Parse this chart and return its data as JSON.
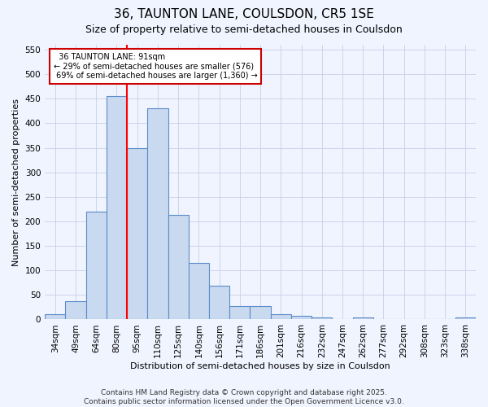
{
  "title": "36, TAUNTON LANE, COULSDON, CR5 1SE",
  "subtitle": "Size of property relative to semi-detached houses in Coulsdon",
  "xlabel": "Distribution of semi-detached houses by size in Coulsdon",
  "ylabel": "Number of semi-detached properties",
  "categories": [
    "34sqm",
    "49sqm",
    "64sqm",
    "80sqm",
    "95sqm",
    "110sqm",
    "125sqm",
    "140sqm",
    "156sqm",
    "171sqm",
    "186sqm",
    "201sqm",
    "216sqm",
    "232sqm",
    "247sqm",
    "262sqm",
    "277sqm",
    "292sqm",
    "308sqm",
    "323sqm",
    "338sqm"
  ],
  "values": [
    10,
    38,
    220,
    456,
    350,
    430,
    213,
    115,
    68,
    27,
    27,
    10,
    7,
    4,
    1,
    4,
    0,
    0,
    0,
    0,
    4
  ],
  "bar_color": "#c9d9f0",
  "bar_edge_color": "#5b8cc8",
  "red_line_index": 4,
  "property_label": "36 TAUNTON LANE: 91sqm",
  "pct_smaller": "29%",
  "pct_larger": "69%",
  "count_smaller": "576",
  "count_larger": "1,360",
  "annotation_box_color": "#ffffff",
  "annotation_box_edge": "#cc0000",
  "ylim": [
    0,
    560
  ],
  "yticks": [
    0,
    50,
    100,
    150,
    200,
    250,
    300,
    350,
    400,
    450,
    500,
    550
  ],
  "background_color": "#f0f4ff",
  "grid_color": "#c8d0e8",
  "footer_text": "Contains HM Land Registry data © Crown copyright and database right 2025.\nContains public sector information licensed under the Open Government Licence v3.0.",
  "title_fontsize": 11,
  "subtitle_fontsize": 9,
  "axis_label_fontsize": 8,
  "tick_fontsize": 7.5,
  "footer_fontsize": 6.5
}
